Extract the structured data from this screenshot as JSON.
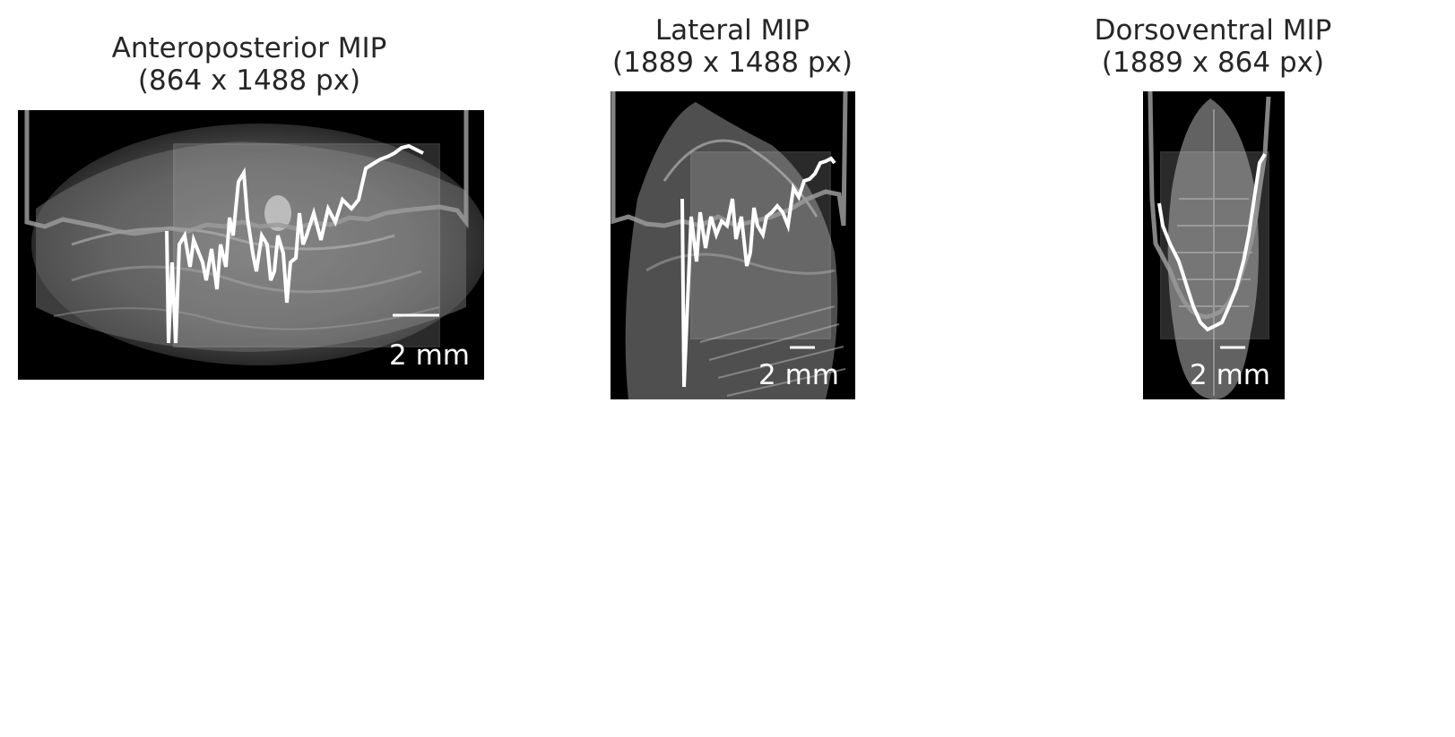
{
  "panels": [
    {
      "title_line1": "Anteroposterior MIP",
      "title_line2": "(864 x 1488 px)",
      "scalebar_label": "2 mm",
      "icon": "ct-mip-image"
    },
    {
      "title_line1": "Lateral MIP",
      "title_line2": "(1889 x 1488 px)",
      "scalebar_label": "2 mm",
      "icon": "ct-mip-image"
    },
    {
      "title_line1": "Dorsoventral MIP",
      "title_line2": "(1889 x 864 px)",
      "scalebar_label": "2 mm",
      "icon": "ct-mip-image"
    }
  ],
  "colors": {
    "background": "#ffffff",
    "image_background": "#000000",
    "title_text": "#262626",
    "overlay_text": "#ffffff"
  }
}
